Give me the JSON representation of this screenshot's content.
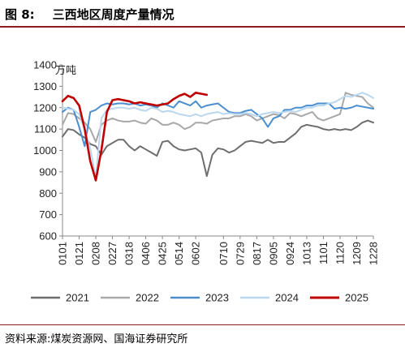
{
  "header": {
    "figure_label": "图 8:",
    "title": "三西地区周度产量情况"
  },
  "footer": {
    "source": "资料来源:煤炭资源网、国海证券研究所"
  },
  "colors": {
    "accent_rule": "#8c1d1d"
  },
  "chart_data": {
    "type": "line",
    "unit_label": "万吨",
    "ylim": [
      600,
      1400
    ],
    "yticks": [
      600,
      700,
      800,
      900,
      1000,
      1100,
      1200,
      1300,
      1400
    ],
    "grid": false,
    "legend_position": "bottom",
    "x_tick_labels": [
      "0101",
      "0121",
      "0208",
      "0227",
      "0318",
      "0406",
      "0425",
      "0514",
      "0602",
      "0710",
      "0729",
      "0817",
      "0905",
      "0924",
      "1013",
      "1101",
      "1120",
      "1209",
      "1228"
    ],
    "x": [
      "0101",
      "0107",
      "0114",
      "0121",
      "0128",
      "0204",
      "0208",
      "0211",
      "0218",
      "0227",
      "0304",
      "0311",
      "0318",
      "0325",
      "0401",
      "0406",
      "0412",
      "0418",
      "0425",
      "0430",
      "0507",
      "0514",
      "0521",
      "0528",
      "0602",
      "0611",
      "0618",
      "0625",
      "0701",
      "0710",
      "0716",
      "0722",
      "0729",
      "0805",
      "0811",
      "0817",
      "0824",
      "0830",
      "0905",
      "0911",
      "0917",
      "0924",
      "0930",
      "1006",
      "1013",
      "1019",
      "1026",
      "1101",
      "1107",
      "1113",
      "1120",
      "1126",
      "1203",
      "1209",
      "1216",
      "1222",
      "1228"
    ],
    "series": [
      {
        "name": "2021",
        "color": "#6e6e6e",
        "values": [
          1065,
          1100,
          1095,
          1075,
          1060,
          1030,
          1020,
          980,
          1020,
          1035,
          1050,
          1050,
          1020,
          1000,
          1020,
          1005,
          990,
          975,
          1040,
          1045,
          1020,
          1005,
          1000,
          1005,
          1010,
          990,
          880,
          980,
          1010,
          1005,
          990,
          1000,
          1020,
          1040,
          1045,
          1040,
          1035,
          1050,
          1035,
          1040,
          1040,
          1060,
          1080,
          1110,
          1120,
          1115,
          1110,
          1100,
          1095,
          1100,
          1095,
          1100,
          1095,
          1110,
          1130,
          1140,
          1130
        ]
      },
      {
        "name": "2022",
        "color": "#a8a8a8",
        "values": [
          1120,
          1175,
          1170,
          1150,
          1130,
          1100,
          1040,
          1120,
          1140,
          1150,
          1140,
          1135,
          1135,
          1140,
          1130,
          1125,
          1150,
          1140,
          1120,
          1120,
          1130,
          1120,
          1100,
          1110,
          1130,
          1130,
          1125,
          1140,
          1145,
          1150,
          1150,
          1160,
          1160,
          1170,
          1160,
          1140,
          1150,
          1160,
          1170,
          1165,
          1150,
          1175,
          1170,
          1160,
          1170,
          1180,
          1150,
          1140,
          1150,
          1160,
          1170,
          1270,
          1260,
          1255,
          1250,
          1220,
          1200
        ]
      },
      {
        "name": "2023",
        "color": "#4a8ecf",
        "values": [
          1180,
          1200,
          1190,
          1110,
          1020,
          1180,
          1190,
          1210,
          1220,
          1215,
          1220,
          1220,
          1215,
          1220,
          1210,
          1215,
          1210,
          1200,
          1220,
          1210,
          1200,
          1230,
          1220,
          1210,
          1230,
          1200,
          1210,
          1215,
          1220,
          1200,
          1180,
          1175,
          1175,
          1185,
          1190,
          1170,
          1150,
          1110,
          1150,
          1160,
          1190,
          1190,
          1200,
          1200,
          1210,
          1210,
          1220,
          1220,
          1220,
          1195,
          1200,
          1195,
          1200,
          1210,
          1205,
          1200,
          1195
        ]
      },
      {
        "name": "2024",
        "color": "#b9d7ef",
        "values": [
          1200,
          1195,
          1190,
          1170,
          1100,
          1010,
          870,
          1150,
          1190,
          1195,
          1200,
          1200,
          1195,
          1200,
          1190,
          1185,
          1200,
          1195,
          1180,
          1185,
          1180,
          1170,
          1165,
          1160,
          1170,
          1160,
          1170,
          1175,
          1180,
          1170,
          1175,
          1170,
          1170,
          1175,
          1170,
          1160,
          1170,
          1175,
          1180,
          1175,
          1180,
          1185,
          1180,
          1190,
          1200,
          1200,
          1210,
          1210,
          1220,
          1225,
          1240,
          1255,
          1250,
          1260,
          1270,
          1260,
          1245
        ]
      },
      {
        "name": "2025",
        "color": "#c00000",
        "values": [
          1230,
          1255,
          1245,
          1210,
          1100,
          950,
          860,
          1000,
          1180,
          1235,
          1240,
          1235,
          1230,
          1220,
          1225,
          1220,
          1215,
          1210,
          1215,
          1220,
          1240,
          1255,
          1265,
          1250,
          1270,
          1265,
          1260,
          null,
          null,
          null,
          null,
          null,
          null,
          null,
          null,
          null,
          null,
          null,
          null,
          null,
          null,
          null,
          null,
          null,
          null,
          null,
          null,
          null,
          null,
          null,
          null,
          null,
          null,
          null,
          null,
          null,
          null
        ]
      }
    ]
  }
}
